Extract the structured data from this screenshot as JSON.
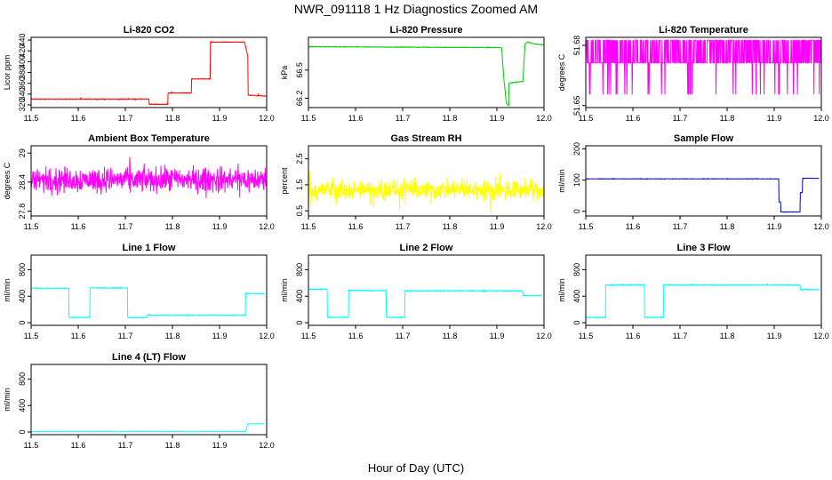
{
  "title": "NWR_091118  1 Hz Diagnostics Zoomed AM",
  "xlabel": "Hour of Day (UTC)",
  "chart_data": [
    {
      "type": "line",
      "title": "Li-820 CO2",
      "ylabel": "Licor ppm",
      "color": "#ff0000",
      "xlim": [
        11.5,
        12.0
      ],
      "ylim": [
        315,
        445
      ],
      "xticks": [
        "11.5",
        "11.6",
        "11.7",
        "11.8",
        "11.9",
        "12.0"
      ],
      "yticks": [
        320,
        340,
        360,
        380,
        400,
        420,
        440
      ],
      "noise": 0.6,
      "series": [
        {
          "x": [
            11.5,
            11.75,
            11.75,
            11.79,
            11.79,
            11.84,
            11.84,
            11.88,
            11.88,
            11.953,
            11.96,
            11.96,
            12.0
          ],
          "y": [
            330.5,
            330.5,
            321,
            321,
            342,
            342,
            368,
            368,
            436,
            436,
            410,
            338,
            336
          ]
        }
      ]
    },
    {
      "type": "line",
      "title": "Li-820 Pressure",
      "ylabel": "kPa",
      "color": "#00cc00",
      "xlim": [
        11.5,
        12.0
      ],
      "ylim": [
        66.1,
        66.85
      ],
      "xticks": [
        "11.5",
        "11.6",
        "11.7",
        "11.8",
        "11.9",
        "12.0"
      ],
      "yticks": [
        66.2,
        66.5
      ],
      "yticklabels": [
        "66.2",
        "66.5"
      ],
      "noise": 0.003,
      "series": [
        {
          "x": [
            11.5,
            11.91,
            11.915,
            11.92,
            11.925,
            11.925,
            11.955,
            11.96,
            11.965,
            11.98,
            12.0
          ],
          "y": [
            66.75,
            66.74,
            66.4,
            66.15,
            66.12,
            66.36,
            66.38,
            66.78,
            66.8,
            66.78,
            66.77
          ]
        }
      ]
    },
    {
      "type": "line",
      "title": "Li-820 Temperature",
      "ylabel": "degrees C",
      "color": "#ff00ff",
      "xlim": [
        11.5,
        12.0
      ],
      "ylim": [
        51.649,
        51.684
      ],
      "xticks": [
        "11.5",
        "11.6",
        "11.7",
        "11.8",
        "11.9",
        "12.0"
      ],
      "yticks": [
        51.65,
        51.68
      ],
      "yticklabels": [
        "51.65",
        "51.68"
      ],
      "quantized": [
        51.6555,
        51.6713,
        51.6826
      ],
      "series": [
        {
          "x": [
            11.5,
            12.0
          ],
          "y": [
            51.6713,
            51.6713
          ]
        }
      ]
    },
    {
      "type": "line",
      "title": "Ambient Box Temperature",
      "ylabel": "degrees C",
      "color": "#ff00ff",
      "xlim": [
        11.5,
        12.0
      ],
      "ylim": [
        27.7,
        29.15
      ],
      "xticks": [
        "11.5",
        "11.6",
        "11.7",
        "11.8",
        "11.9",
        "12.0"
      ],
      "yticks": [
        27.8,
        28.4,
        29.0
      ],
      "noise": 0.22,
      "series": [
        {
          "x": [
            11.5,
            12.0
          ],
          "y": [
            28.45,
            28.45
          ]
        }
      ]
    },
    {
      "type": "line",
      "title": "Gas Stream RH",
      "ylabel": "percent",
      "color": "#ffff00",
      "xlim": [
        11.5,
        12.0
      ],
      "ylim": [
        0.3,
        3.0
      ],
      "xticks": [
        "11.5",
        "11.6",
        "11.7",
        "11.8",
        "11.9",
        "12.0"
      ],
      "yticks": [
        0.5,
        1.5,
        2.5
      ],
      "noise": 0.32,
      "series": [
        {
          "x": [
            11.5,
            12.0
          ],
          "y": [
            1.3,
            1.3
          ]
        }
      ]
    },
    {
      "type": "line",
      "title": "Sample Flow",
      "ylabel": "ml/min",
      "color": "#0000cc",
      "xlim": [
        11.5,
        12.0
      ],
      "ylim": [
        -15,
        210
      ],
      "xticks": [
        "11.5",
        "11.6",
        "11.7",
        "11.8",
        "11.9",
        "12.0"
      ],
      "yticks": [
        0,
        100,
        200
      ],
      "noise": 0.6,
      "series": [
        {
          "x": [
            11.5,
            11.91,
            11.91,
            11.914,
            11.914,
            11.955,
            11.955,
            11.96,
            11.96,
            11.995
          ],
          "y": [
            104,
            104,
            30,
            30,
            -2,
            -2,
            60,
            60,
            106,
            106
          ]
        }
      ]
    },
    {
      "type": "line",
      "title": "Line 1 Flow",
      "ylabel": "ml/min",
      "color": "#00ffff",
      "xlim": [
        11.5,
        12.0
      ],
      "ylim": [
        -40,
        1020
      ],
      "xticks": [
        "11.5",
        "11.6",
        "11.7",
        "11.8",
        "11.9",
        "12.0"
      ],
      "yticks": [
        0,
        400,
        800
      ],
      "noise": 5,
      "series": [
        {
          "x": [
            11.5,
            11.58,
            11.58,
            11.625,
            11.625,
            11.705,
            11.705,
            11.745,
            11.745,
            11.955,
            11.955,
            11.995
          ],
          "y": [
            520,
            520,
            80,
            80,
            525,
            525,
            75,
            75,
            115,
            115,
            440,
            440
          ]
        }
      ]
    },
    {
      "type": "line",
      "title": "Line 2 Flow",
      "ylabel": "ml/min",
      "color": "#00ffff",
      "xlim": [
        11.5,
        12.0
      ],
      "ylim": [
        -40,
        1020
      ],
      "xticks": [
        "11.5",
        "11.6",
        "11.7",
        "11.8",
        "11.9",
        "12.0"
      ],
      "yticks": [
        0,
        400,
        800
      ],
      "noise": 6,
      "series": [
        {
          "x": [
            11.5,
            11.54,
            11.54,
            11.585,
            11.585,
            11.665,
            11.665,
            11.705,
            11.705,
            11.955,
            11.955,
            11.995
          ],
          "y": [
            505,
            505,
            80,
            80,
            485,
            485,
            80,
            80,
            480,
            480,
            410,
            410
          ]
        }
      ]
    },
    {
      "type": "line",
      "title": "Line 3 Flow",
      "ylabel": "ml/min",
      "color": "#00ffff",
      "xlim": [
        11.5,
        12.0
      ],
      "ylim": [
        -40,
        1020
      ],
      "xticks": [
        "11.5",
        "11.6",
        "11.7",
        "11.8",
        "11.9",
        "12.0"
      ],
      "yticks": [
        0,
        400,
        800
      ],
      "noise": 6,
      "series": [
        {
          "x": [
            11.5,
            11.542,
            11.542,
            11.625,
            11.625,
            11.665,
            11.665,
            11.955,
            11.955,
            11.995
          ],
          "y": [
            80,
            80,
            570,
            570,
            80,
            80,
            570,
            570,
            500,
            500
          ]
        }
      ]
    },
    {
      "type": "line",
      "title": "Line 4 (LT) Flow",
      "ylabel": "ml/min",
      "color": "#00ffff",
      "xlim": [
        11.5,
        12.0
      ],
      "ylim": [
        -40,
        1020
      ],
      "xticks": [
        "11.5",
        "11.6",
        "11.7",
        "11.8",
        "11.9",
        "12.0"
      ],
      "yticks": [
        0,
        400,
        800
      ],
      "noise": 1,
      "series": [
        {
          "x": [
            11.5,
            11.955,
            11.96,
            11.995
          ],
          "y": [
            5,
            5,
            125,
            125
          ]
        }
      ]
    }
  ]
}
